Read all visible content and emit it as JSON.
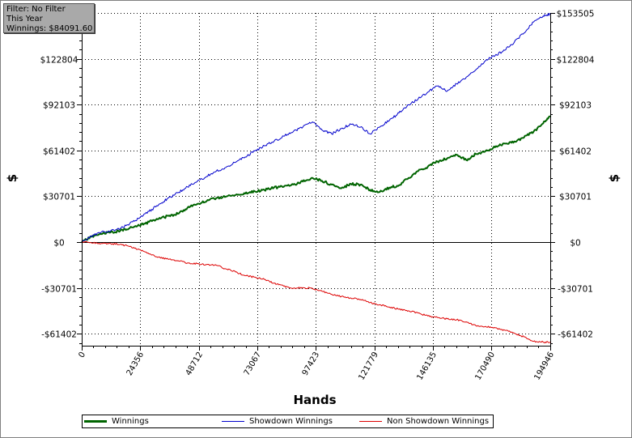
{
  "filter_box": {
    "line1": "Filter: No Filter",
    "line2": "This Year",
    "line3": "Winnings: $84091.60"
  },
  "colors": {
    "winnings": "#006400",
    "showdown": "#0000cc",
    "non_showdown": "#dd0000",
    "grid": "#000000"
  },
  "chart_data": {
    "type": "line",
    "xlabel": "Hands",
    "ylabel": "$",
    "xlim": [
      0,
      194946
    ],
    "ylim": [
      -68000,
      153505
    ],
    "x_ticks": [
      0,
      24356,
      48712,
      73067,
      97423,
      121779,
      146135,
      170490,
      194946
    ],
    "x_tick_labels": [
      "0",
      "24356",
      "48712",
      "73067",
      "97423",
      "121779",
      "146135",
      "170490",
      "194946"
    ],
    "y_ticks": [
      -61402,
      -30701,
      0,
      30701,
      61402,
      92103,
      122804,
      153505
    ],
    "y_tick_labels": [
      "-$61402",
      "-$30701",
      "$0",
      "$30701",
      "$61402",
      "$92103",
      "$122804",
      "$153505"
    ],
    "grid": true,
    "legend_position": "bottom",
    "series": [
      {
        "name": "Winnings",
        "color": "#006400",
        "x": [
          0,
          4000,
          8000,
          12000,
          16000,
          20000,
          24000,
          28000,
          32000,
          36000,
          40000,
          44000,
          48000,
          52000,
          56000,
          60000,
          64000,
          68000,
          72000,
          76000,
          80000,
          84000,
          88000,
          92000,
          96000,
          100000,
          104000,
          108000,
          112000,
          116000,
          120000,
          124000,
          128000,
          132000,
          136000,
          140000,
          144000,
          148000,
          152000,
          156000,
          160000,
          164000,
          168000,
          172000,
          176000,
          180000,
          184000,
          188000,
          192000,
          194946
        ],
        "y": [
          0,
          3500,
          5500,
          6500,
          7500,
          9500,
          11000,
          13500,
          15500,
          17500,
          19000,
          23000,
          25500,
          27500,
          29500,
          30500,
          31500,
          32500,
          34000,
          35000,
          36500,
          37000,
          38500,
          40500,
          43000,
          41000,
          38500,
          36000,
          39000,
          38500,
          35000,
          33500,
          36500,
          38000,
          43000,
          47500,
          50500,
          54000,
          56000,
          58500,
          55000,
          59000,
          61000,
          63500,
          66000,
          67500,
          70000,
          74000,
          79500,
          84091.6
        ]
      },
      {
        "name": "Showdown Winnings",
        "color": "#0000cc",
        "x": [
          0,
          4000,
          8000,
          12000,
          16000,
          20000,
          24000,
          28000,
          32000,
          36000,
          40000,
          44000,
          48000,
          52000,
          56000,
          60000,
          64000,
          68000,
          72000,
          76000,
          80000,
          84000,
          88000,
          92000,
          96000,
          100000,
          104000,
          108000,
          112000,
          116000,
          120000,
          124000,
          128000,
          132000,
          136000,
          140000,
          144000,
          148000,
          152000,
          156000,
          160000,
          164000,
          168000,
          172000,
          176000,
          180000,
          184000,
          188000,
          192000,
          194946
        ],
        "y": [
          0,
          4000,
          6500,
          7500,
          9000,
          12500,
          16000,
          20500,
          25000,
          29500,
          33000,
          37000,
          40500,
          44000,
          47500,
          50000,
          53500,
          57000,
          61000,
          64500,
          67500,
          71000,
          74000,
          77000,
          80500,
          75000,
          72500,
          76000,
          79000,
          77000,
          72500,
          77000,
          81500,
          86500,
          92000,
          96000,
          100500,
          104500,
          101000,
          106000,
          110500,
          115500,
          121500,
          125000,
          128500,
          134000,
          140000,
          147500,
          151500,
          152850
        ]
      },
      {
        "name": "Non Showdown Winnings",
        "color": "#dd0000",
        "x": [
          0,
          4000,
          8000,
          12000,
          16000,
          20000,
          24000,
          28000,
          32000,
          36000,
          40000,
          44000,
          48000,
          52000,
          56000,
          60000,
          64000,
          68000,
          72000,
          76000,
          80000,
          84000,
          88000,
          92000,
          96000,
          100000,
          104000,
          108000,
          112000,
          116000,
          120000,
          124000,
          128000,
          132000,
          136000,
          140000,
          144000,
          148000,
          152000,
          156000,
          160000,
          164000,
          168000,
          172000,
          176000,
          180000,
          184000,
          188000,
          192000,
          194946
        ],
        "y": [
          0,
          -500,
          -1000,
          -1000,
          -1500,
          -3000,
          -5000,
          -8000,
          -10000,
          -11500,
          -12500,
          -14000,
          -14500,
          -15000,
          -15500,
          -18000,
          -20000,
          -22500,
          -23500,
          -25000,
          -27500,
          -29500,
          -31000,
          -30500,
          -31000,
          -33000,
          -35000,
          -36500,
          -37500,
          -38500,
          -40500,
          -42000,
          -43500,
          -45000,
          -46000,
          -47500,
          -49500,
          -50500,
          -51500,
          -52000,
          -53500,
          -56000,
          -56500,
          -57500,
          -59000,
          -61000,
          -63500,
          -66500,
          -67000,
          -67000
        ]
      }
    ]
  }
}
